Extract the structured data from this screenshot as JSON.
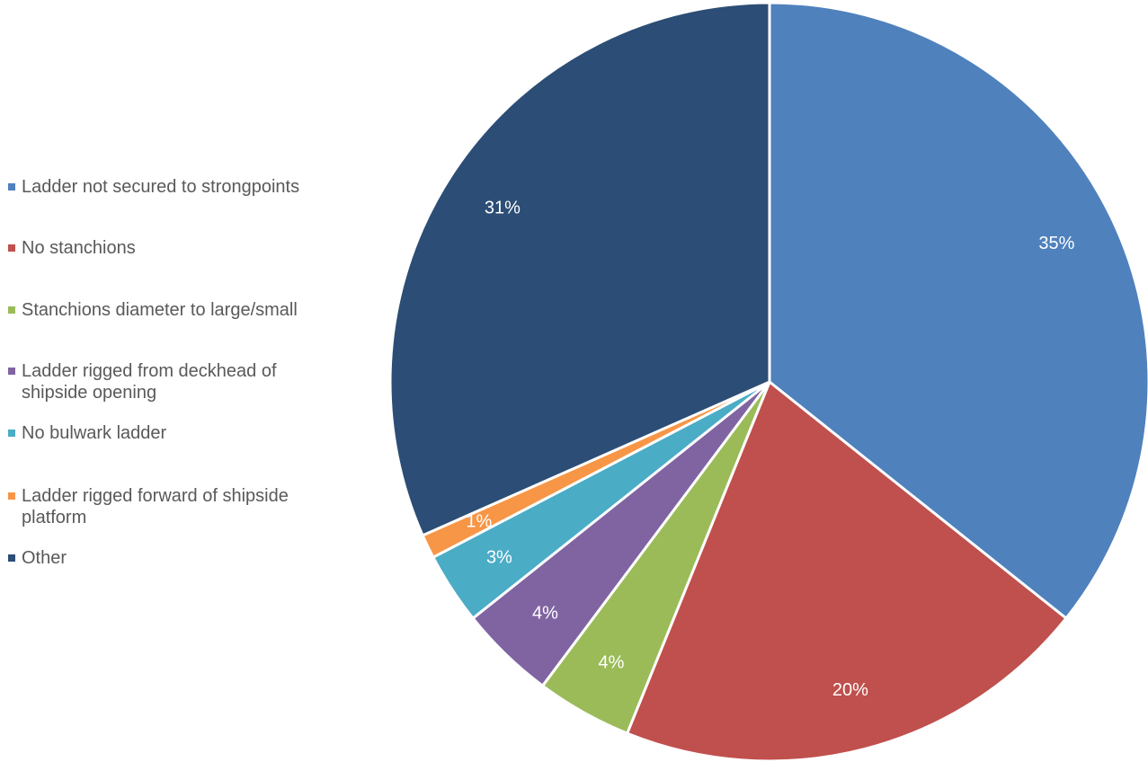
{
  "chart_data": {
    "type": "pie",
    "title": "",
    "legend_position": "left",
    "slices": [
      {
        "label": "Ladder not secured to strongpoints",
        "value": 35,
        "data_label": "35%",
        "color": "#4F81BD"
      },
      {
        "label": "No stanchions",
        "value": 20,
        "data_label": "20%",
        "color": "#C0504D"
      },
      {
        "label": "Stanchions diameter to large/small",
        "value": 4,
        "data_label": "4%",
        "color": "#9BBB59"
      },
      {
        "label": "Ladder rigged from deckhead of shipside opening",
        "value": 4,
        "data_label": "4%",
        "color": "#8064A2"
      },
      {
        "label": "No bulwark ladder",
        "value": 3,
        "data_label": "3%",
        "color": "#4BACC6"
      },
      {
        "label": "Ladder rigged forward of shipside platform",
        "value": 1,
        "data_label": "1%",
        "color": "#F79646"
      },
      {
        "label": "Other",
        "value": 31,
        "data_label": "31%",
        "color": "#2C4D75"
      }
    ]
  }
}
